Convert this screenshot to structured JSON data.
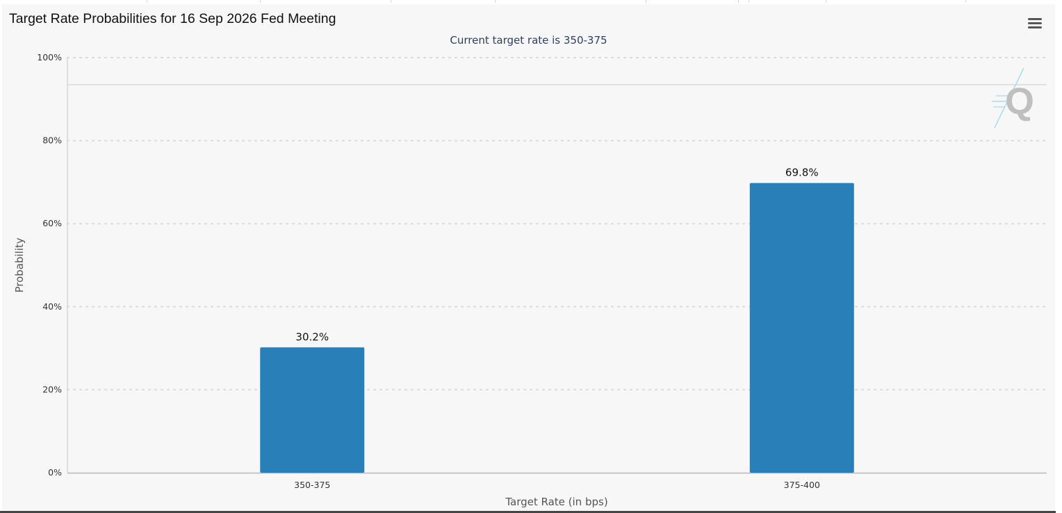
{
  "header": {
    "title": "Target Rate Probabilities for 16 Sep 2026 Fed Meeting",
    "subtitle": "Current target rate is 350-375",
    "menu_icon": "hamburger-menu-icon",
    "watermark_icon": "q-logo-icon"
  },
  "colors": {
    "bar": "#2980b9",
    "panel_bg": "#f7f7f7",
    "grid": "#d8d8d8",
    "axis_text": "#333333",
    "axis_title": "#555555"
  },
  "chart_data": {
    "type": "bar",
    "title": "Target Rate Probabilities for 16 Sep 2026 Fed Meeting",
    "subtitle": "Current target rate is 350-375",
    "xlabel": "Target Rate (in bps)",
    "ylabel": "Probability",
    "categories": [
      "350-375",
      "375-400"
    ],
    "values": [
      30.2,
      69.8
    ],
    "data_labels": [
      "30.2%",
      "69.8%"
    ],
    "ylim": [
      0,
      100
    ],
    "yticks": [
      0,
      20,
      40,
      60,
      80,
      100
    ],
    "ytick_labels": [
      "0%",
      "20%",
      "40%",
      "60%",
      "80%",
      "100%"
    ],
    "grid": true,
    "grid_style": "dotted",
    "legend": "none"
  }
}
